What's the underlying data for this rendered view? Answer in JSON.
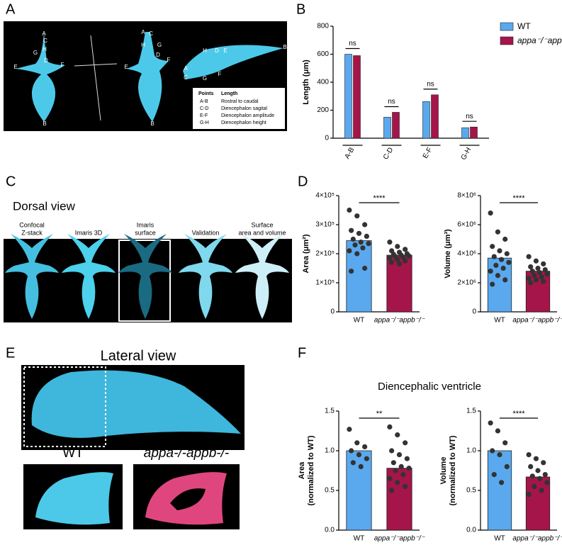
{
  "panel_letters": [
    "A",
    "B",
    "C",
    "D",
    "E",
    "F"
  ],
  "panel_a": {
    "drawings": [
      [
        "A",
        "C",
        "H",
        "G",
        "D",
        "E",
        "F",
        "B"
      ],
      [
        "A",
        "C",
        "H",
        "G",
        "D",
        "E",
        "F",
        "B"
      ],
      [
        "H",
        "D",
        "E",
        "B",
        "A",
        "C",
        "G",
        "F"
      ]
    ],
    "table": {
      "header": [
        "Points",
        "Length"
      ],
      "rows": [
        [
          "A-B",
          "Rostral to caudal"
        ],
        [
          "C-D",
          "Diencephalon sagital"
        ],
        [
          "E-F",
          "Diencephalon amplitude"
        ],
        [
          "G-H",
          "Diencephalon height"
        ]
      ]
    }
  },
  "panel_c": {
    "title": "Dorsal view",
    "columns": [
      [
        "Confocal",
        "Z-stack"
      ],
      [
        "Imaris 3D"
      ],
      [
        "Imaris",
        "surface"
      ],
      [
        "Validation"
      ],
      [
        "Surface",
        "area and volume"
      ]
    ]
  },
  "panel_e": {
    "title": "Lateral view",
    "labels": [
      "WT",
      "appa-/-appb-/-"
    ]
  },
  "panel_f": {
    "title": "Diencephalic ventricle"
  },
  "chart_data": [
    {
      "type": "bar",
      "y_label": "Length (μm)",
      "categories": [
        "A-B",
        "C-D",
        "E-F",
        "G-H"
      ],
      "series": [
        {
          "name": "WT",
          "color": "#5aa9ef",
          "values": [
            600,
            150,
            262,
            75
          ]
        },
        {
          "name": "appa⁻/⁻appb⁻/⁻",
          "color": "#a5154a",
          "values": [
            590,
            185,
            310,
            80
          ]
        }
      ],
      "ylim": [
        0,
        800
      ],
      "yticks": [
        0,
        200,
        400,
        600,
        800
      ],
      "annotations": [
        "ns",
        "ns",
        "ns",
        "ns"
      ],
      "legend": "upper right"
    },
    {
      "type": "bar",
      "y_label": "Area (μm²)",
      "categories": [
        "WT",
        "appa⁻/⁻appb⁻/⁻"
      ],
      "values": [
        245000,
        195000
      ],
      "colors": [
        "#5aa9ef",
        "#a5154a"
      ],
      "points": [
        [
          350000,
          330000,
          300000,
          280000,
          270000,
          260000,
          250000,
          240000,
          235000,
          230000,
          220000,
          210000,
          200000,
          150000,
          140000
        ],
        [
          240000,
          225000,
          215000,
          210000,
          205000,
          200000,
          198000,
          195000,
          192000,
          190000,
          188000,
          185000,
          180000,
          175000,
          170000,
          165000
        ]
      ],
      "ylim": [
        0,
        400000
      ],
      "yticks": [
        0,
        {
          "value": 100000,
          "label": "1×10⁵"
        },
        {
          "value": 200000,
          "label": "2×10⁵"
        },
        {
          "value": 300000,
          "label": "3×10⁵"
        },
        {
          "value": 400000,
          "label": "4×10⁵"
        }
      ],
      "annotations": [
        "****"
      ]
    },
    {
      "type": "bar",
      "y_label": "Volume (μm³)",
      "categories": [
        "WT",
        "appa⁻/⁻appb⁻/⁻"
      ],
      "values": [
        3700000,
        2800000
      ],
      "colors": [
        "#5aa9ef",
        "#a5154a"
      ],
      "points": [
        [
          6800000,
          5500000,
          5000000,
          4500000,
          4200000,
          4000000,
          3800000,
          3600000,
          3400000,
          3200000,
          3000000,
          2800000,
          2500000,
          2200000,
          1900000
        ],
        [
          3800000,
          3500000,
          3300000,
          3100000,
          3000000,
          2900000,
          2800000,
          2700000,
          2600000,
          2500000,
          2400000,
          2300000,
          2200000,
          2100000,
          2000000
        ]
      ],
      "ylim": [
        0,
        8000000
      ],
      "yticks": [
        0,
        {
          "value": 2000000,
          "label": "2×10⁶"
        },
        {
          "value": 4000000,
          "label": "4×10⁶"
        },
        {
          "value": 6000000,
          "label": "6×10⁶"
        },
        {
          "value": 8000000,
          "label": "8×10⁶"
        }
      ],
      "annotations": [
        "****"
      ]
    },
    {
      "type": "bar",
      "y_label": [
        "Area",
        "(normalized to WT)"
      ],
      "categories": [
        "WT",
        "appa⁻/⁻appb⁻/⁻"
      ],
      "values": [
        1.0,
        0.78
      ],
      "colors": [
        "#5aa9ef",
        "#a5154a"
      ],
      "points": [
        [
          1.27,
          1.1,
          1.05,
          1.0,
          0.95,
          0.9,
          0.85,
          0.8
        ],
        [
          1.3,
          1.2,
          1.1,
          1.0,
          0.95,
          0.9,
          0.85,
          0.8,
          0.78,
          0.75,
          0.7,
          0.65,
          0.6,
          0.55,
          0.5
        ]
      ],
      "ylim": [
        0,
        1.5
      ],
      "yticks": [
        {
          "value": 0,
          "label": "0.0"
        },
        0.5,
        {
          "value": 1,
          "label": "1.0"
        },
        1.5
      ],
      "annotations": [
        "**"
      ]
    },
    {
      "type": "bar",
      "y_label": [
        "Volume",
        "(normalized to WT)"
      ],
      "categories": [
        "WT",
        "appa⁻/⁻appb⁻/⁻"
      ],
      "values": [
        1.0,
        0.67
      ],
      "colors": [
        "#5aa9ef",
        "#a5154a"
      ],
      "points": [
        [
          1.35,
          1.25,
          1.1,
          1.0,
          0.95,
          0.8,
          0.7,
          0.6
        ],
        [
          0.95,
          0.9,
          0.85,
          0.8,
          0.75,
          0.7,
          0.68,
          0.65,
          0.6,
          0.55,
          0.5,
          0.45
        ]
      ],
      "ylim": [
        0,
        1.5
      ],
      "yticks": [
        {
          "value": 0,
          "label": "0.0"
        },
        0.5,
        {
          "value": 1,
          "label": "1.0"
        },
        1.5
      ],
      "annotations": [
        "****"
      ]
    }
  ]
}
